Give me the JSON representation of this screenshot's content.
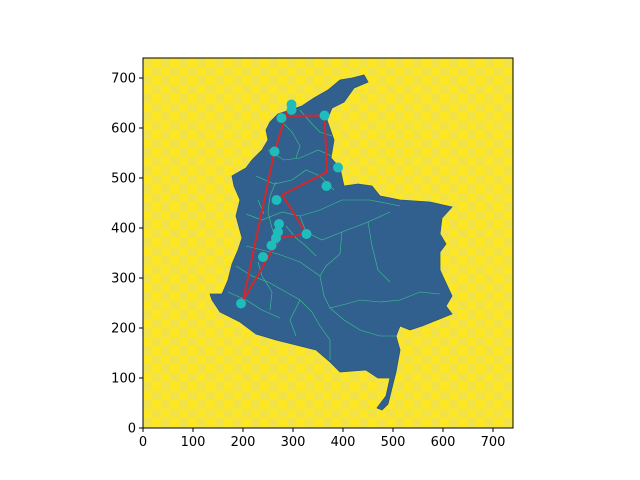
{
  "chart_data": {
    "type": "scatter",
    "title": "",
    "xlabel": "",
    "ylabel": "",
    "xlim": [
      0,
      740
    ],
    "ylim": [
      0,
      740
    ],
    "x_ticks": [
      "0",
      "100",
      "200",
      "300",
      "400",
      "500",
      "600",
      "700"
    ],
    "y_ticks": [
      "0",
      "100",
      "200",
      "300",
      "400",
      "500",
      "600",
      "700"
    ],
    "grid": false,
    "legend": "none",
    "background": {
      "pattern": "checkerboard",
      "colors": [
        "#fde725",
        "#f1e24a"
      ]
    },
    "region_fill": "#31608f",
    "boundary_color": "#3bd28a",
    "route_color": "#d62728",
    "marker_color": "#1fbcbc",
    "points": [
      {
        "x": 297,
        "y": 647
      },
      {
        "x": 297,
        "y": 636
      },
      {
        "x": 277,
        "y": 620
      },
      {
        "x": 363,
        "y": 625
      },
      {
        "x": 263,
        "y": 553
      },
      {
        "x": 390,
        "y": 521
      },
      {
        "x": 367,
        "y": 484
      },
      {
        "x": 267,
        "y": 456
      },
      {
        "x": 272,
        "y": 408
      },
      {
        "x": 327,
        "y": 388
      },
      {
        "x": 270,
        "y": 392
      },
      {
        "x": 266,
        "y": 380
      },
      {
        "x": 257,
        "y": 365
      },
      {
        "x": 240,
        "y": 342
      },
      {
        "x": 196,
        "y": 249
      }
    ],
    "route": [
      {
        "x": 297,
        "y": 647
      },
      {
        "x": 285,
        "y": 624
      },
      {
        "x": 363,
        "y": 625
      },
      {
        "x": 368,
        "y": 512
      },
      {
        "x": 278,
        "y": 466
      },
      {
        "x": 297,
        "y": 437
      },
      {
        "x": 327,
        "y": 388
      },
      {
        "x": 272,
        "y": 380
      },
      {
        "x": 237,
        "y": 318
      },
      {
        "x": 200,
        "y": 255
      },
      {
        "x": 263,
        "y": 553
      },
      {
        "x": 285,
        "y": 624
      }
    ]
  }
}
